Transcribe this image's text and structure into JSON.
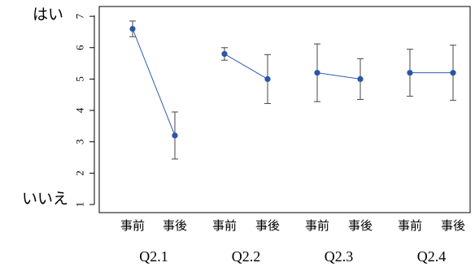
{
  "chart_data": {
    "type": "line",
    "title": "",
    "xlabel": "",
    "ylabel": "",
    "ylim": [
      0.9,
      7.2
    ],
    "y_ticks": [
      1,
      2,
      3,
      4,
      5,
      6,
      7
    ],
    "y_top_label": "はい",
    "y_bottom_label": "いいえ",
    "categories": [
      "事前",
      "事後",
      "事前",
      "事後",
      "事前",
      "事後",
      "事前",
      "事後"
    ],
    "groups": [
      {
        "label": "Q2.1",
        "points": [
          {
            "x": "事前",
            "mean": 6.6,
            "low": 6.35,
            "high": 6.85
          },
          {
            "x": "事後",
            "mean": 3.2,
            "low": 2.45,
            "high": 3.95
          }
        ]
      },
      {
        "label": "Q2.2",
        "points": [
          {
            "x": "事前",
            "mean": 5.8,
            "low": 5.6,
            "high": 6.0
          },
          {
            "x": "事後",
            "mean": 5.0,
            "low": 4.22,
            "high": 5.78
          }
        ]
      },
      {
        "label": "Q2.3",
        "points": [
          {
            "x": "事前",
            "mean": 5.2,
            "low": 4.28,
            "high": 6.12
          },
          {
            "x": "事後",
            "mean": 5.0,
            "low": 4.35,
            "high": 5.65
          }
        ]
      },
      {
        "label": "Q2.4",
        "points": [
          {
            "x": "事前",
            "mean": 5.2,
            "low": 4.45,
            "high": 5.95
          },
          {
            "x": "事後",
            "mean": 5.2,
            "low": 4.32,
            "high": 6.08
          }
        ]
      }
    ],
    "grid": false,
    "colors": {
      "line": "#2f5fb0",
      "point": "#2a55a8",
      "errorbar": "#444444",
      "axis": "#000000"
    }
  }
}
